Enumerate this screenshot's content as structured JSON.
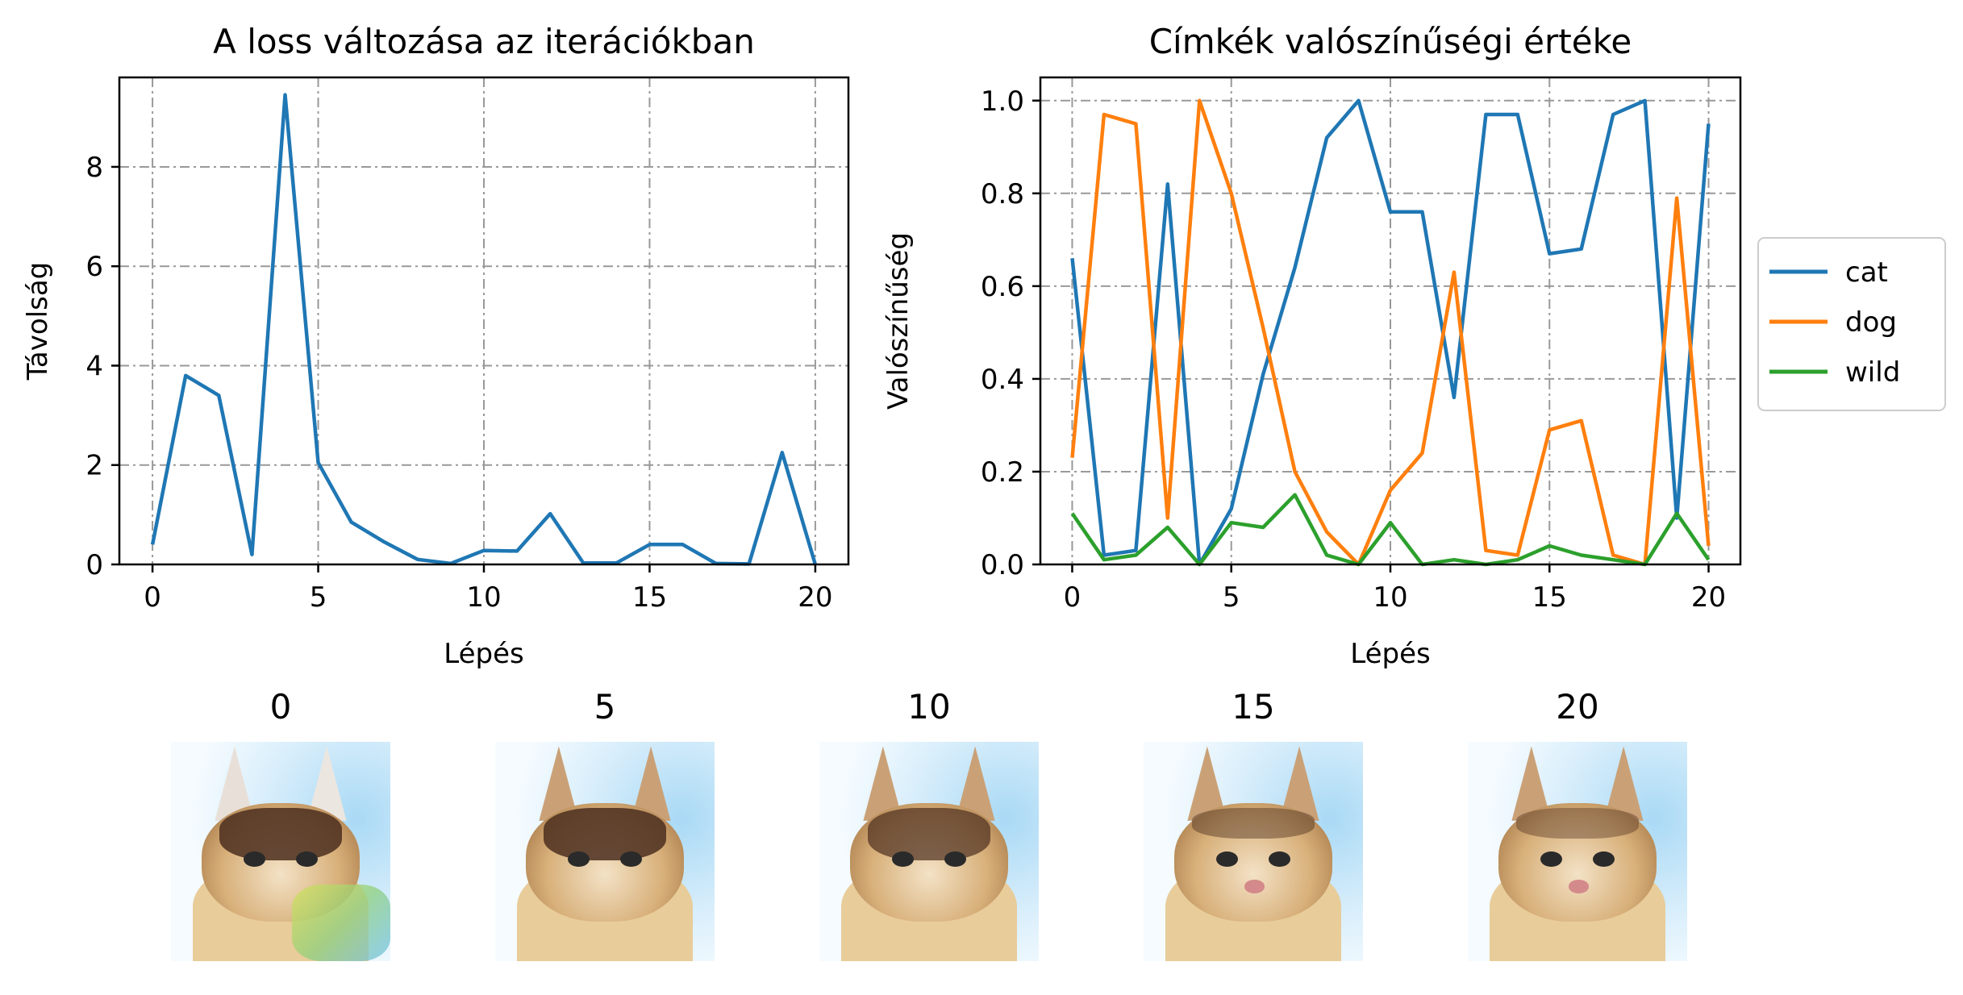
{
  "chart_data": [
    {
      "type": "line",
      "title": "A loss változása az iterációkban",
      "xlabel": "Lépés",
      "ylabel": "Távolság",
      "xlim": [
        -1,
        21
      ],
      "ylim": [
        0,
        9.8
      ],
      "xticks": [
        0,
        5,
        10,
        15,
        20
      ],
      "yticks": [
        0,
        2,
        4,
        6,
        8
      ],
      "grid": true,
      "grid_style": "dashdot",
      "x": [
        0,
        1,
        2,
        3,
        4,
        5,
        6,
        7,
        8,
        9,
        10,
        11,
        12,
        13,
        14,
        15,
        16,
        17,
        18,
        19,
        20
      ],
      "series": [
        {
          "color": "#1f77b4",
          "values": [
            0.4,
            3.8,
            3.4,
            0.2,
            9.45,
            2.05,
            0.85,
            0.45,
            0.1,
            0.02,
            0.28,
            0.27,
            1.02,
            0.03,
            0.03,
            0.4,
            0.4,
            0.02,
            0.01,
            2.25,
            0.0
          ]
        }
      ]
    },
    {
      "type": "line",
      "title": "Címkék valószínűségi értéke",
      "xlabel": "Lépés",
      "ylabel": "Valószínűség",
      "xlim": [
        -1,
        21
      ],
      "ylim": [
        0,
        1.05
      ],
      "xticks": [
        0,
        5,
        10,
        15,
        20
      ],
      "yticks": [
        0.0,
        0.2,
        0.4,
        0.6,
        0.8,
        1.0
      ],
      "grid": true,
      "grid_style": "dashdot",
      "legend": "outside-right",
      "x": [
        0,
        1,
        2,
        3,
        4,
        5,
        6,
        7,
        8,
        9,
        10,
        11,
        12,
        13,
        14,
        15,
        16,
        17,
        18,
        19,
        20
      ],
      "series": [
        {
          "name": "cat",
          "color": "#1f77b4",
          "values": [
            0.66,
            0.02,
            0.03,
            0.82,
            0.0,
            0.12,
            0.41,
            0.64,
            0.92,
            1.0,
            0.76,
            0.76,
            0.36,
            0.97,
            0.97,
            0.67,
            0.68,
            0.97,
            1.0,
            0.1,
            0.95
          ]
        },
        {
          "name": "dog",
          "color": "#ff7f0e",
          "values": [
            0.23,
            0.97,
            0.95,
            0.1,
            1.0,
            0.8,
            0.51,
            0.2,
            0.07,
            0.0,
            0.16,
            0.24,
            0.63,
            0.03,
            0.02,
            0.29,
            0.31,
            0.02,
            0.0,
            0.79,
            0.04
          ]
        },
        {
          "name": "wild",
          "color": "#2ca02c",
          "values": [
            0.11,
            0.01,
            0.02,
            0.08,
            0.0,
            0.09,
            0.08,
            0.15,
            0.02,
            0.0,
            0.09,
            0.0,
            0.01,
            0.0,
            0.01,
            0.04,
            0.02,
            0.01,
            0.0,
            0.11,
            0.01
          ]
        }
      ]
    }
  ],
  "thumbnails": [
    {
      "label": "0"
    },
    {
      "label": "5"
    },
    {
      "label": "10"
    },
    {
      "label": "15"
    },
    {
      "label": "20"
    }
  ]
}
